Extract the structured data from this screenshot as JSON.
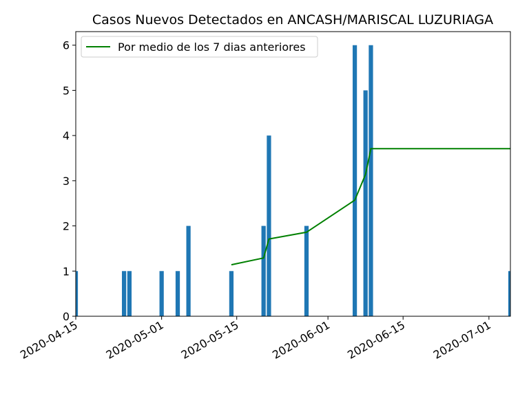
{
  "chart_data": {
    "type": "bar",
    "title": "Casos Nuevos Detectados en ANCASH/MARISCAL LUZURIAGA",
    "xlabel": "",
    "ylabel": "",
    "ylim": [
      0,
      6.3
    ],
    "xlim": [
      "2020-04-15",
      "2020-07-05"
    ],
    "yticks": [
      0,
      1,
      2,
      3,
      4,
      5,
      6
    ],
    "xticks": [
      "2020-04-15",
      "2020-05-01",
      "2020-05-15",
      "2020-06-01",
      "2020-06-15",
      "2020-07-01"
    ],
    "legend": {
      "position": "top-left",
      "entries": [
        "Por medio de los 7 dias anteriores"
      ]
    },
    "grid": false,
    "series": [
      {
        "kind": "bar",
        "color": "#1f77b4",
        "x": [
          "2020-04-15",
          "2020-04-24",
          "2020-04-25",
          "2020-05-01",
          "2020-05-04",
          "2020-05-06",
          "2020-05-14",
          "2020-05-20",
          "2020-05-21",
          "2020-05-28",
          "2020-06-06",
          "2020-06-08",
          "2020-06-09",
          "2020-07-05"
        ],
        "values": [
          1,
          1,
          1,
          1,
          1,
          2,
          1,
          2,
          4,
          2,
          6,
          5,
          6,
          1
        ]
      },
      {
        "kind": "line",
        "name": "Por medio de los 7 dias anteriores",
        "color": "#008000",
        "x": [
          "2020-05-14",
          "2020-05-20",
          "2020-05-21",
          "2020-05-28",
          "2020-06-06",
          "2020-06-08",
          "2020-06-09",
          "2020-07-05"
        ],
        "values": [
          1.14,
          1.29,
          1.71,
          1.86,
          2.57,
          3.14,
          3.71,
          3.71
        ]
      }
    ]
  }
}
